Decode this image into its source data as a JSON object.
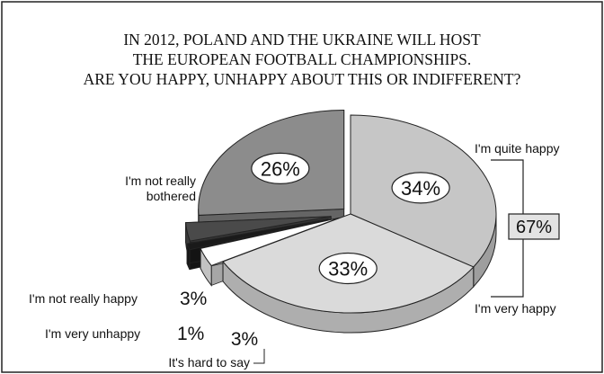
{
  "chart_data": {
    "type": "pie",
    "style": "3d-exploded",
    "title_lines": [
      "IN 2012, POLAND AND THE UKRAINE WILL HOST",
      "THE EUROPEAN FOOTBALL CHAMPIONSHIPS.",
      "ARE YOU HAPPY, UNHAPPY ABOUT THIS OR INDIFFERENT?"
    ],
    "slices": [
      {
        "label": "I'm quite happy",
        "value": 34,
        "value_label": "34%",
        "color": "#c6c6c6"
      },
      {
        "label": "I'm very happy",
        "value": 33,
        "value_label": "33%",
        "color": "#dadada"
      },
      {
        "label": "It's hard to say",
        "value": 3,
        "value_label": "3%",
        "color": "#ffffff"
      },
      {
        "label": "I'm very unhappy",
        "value": 1,
        "value_label": "1%",
        "color": "#1a1a1a"
      },
      {
        "label": "I'm not really happy",
        "value": 3,
        "value_label": "3%",
        "color": "#4a4a4a"
      },
      {
        "label": "I'm not really bothered",
        "value": 26,
        "value_label": "26%",
        "color": "#8c8c8c"
      }
    ],
    "summary_bracket": {
      "value": 67,
      "value_label": "67%",
      "covers": [
        "I'm quite happy",
        "I'm very happy"
      ]
    }
  }
}
